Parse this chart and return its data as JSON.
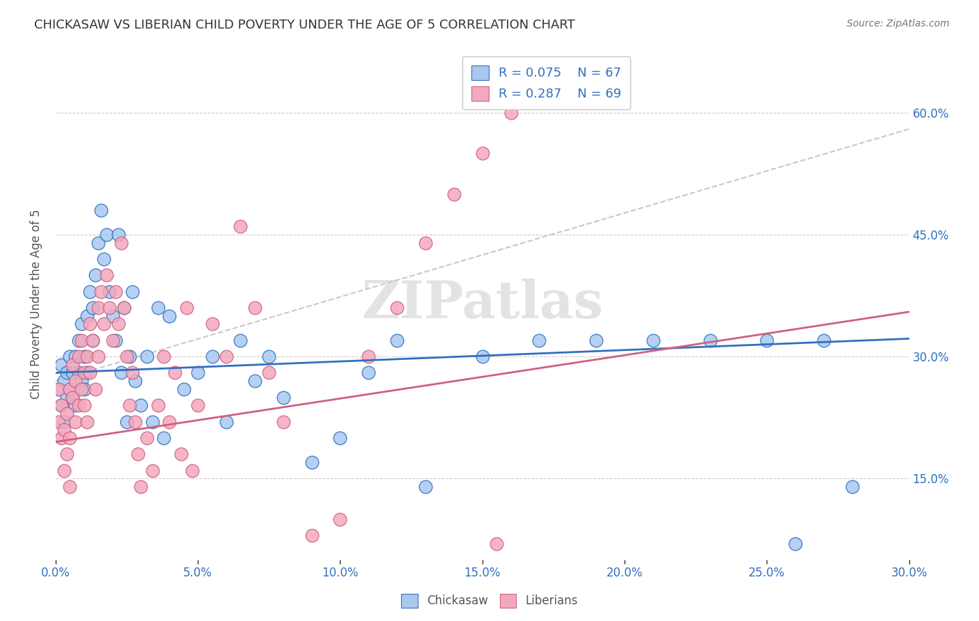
{
  "title": "CHICKASAW VS LIBERIAN CHILD POVERTY UNDER THE AGE OF 5 CORRELATION CHART",
  "source": "Source: ZipAtlas.com",
  "ylabel": "Child Poverty Under the Age of 5",
  "legend_r1": "R = 0.075",
  "legend_n1": "N = 67",
  "legend_r2": "R = 0.287",
  "legend_n2": "N = 69",
  "legend_label1": "Chickasaw",
  "legend_label2": "Liberians",
  "color_blue": "#A8C8F0",
  "color_pink": "#F4A8BC",
  "color_line_blue": "#3070C0",
  "color_line_pink": "#D06080",
  "color_line_dashed": "#C8C8C8",
  "background": "#FFFFFF",
  "watermark": "ZIPatlas",
  "xlim": [
    0.0,
    0.3
  ],
  "ylim": [
    0.05,
    0.68
  ],
  "x_tick_vals": [
    0.0,
    0.05,
    0.1,
    0.15,
    0.2,
    0.25,
    0.3
  ],
  "x_tick_labels": [
    "0.0%",
    "5.0%",
    "10.0%",
    "15.0%",
    "20.0%",
    "25.0%",
    "30.0%"
  ],
  "y_tick_vals": [
    0.15,
    0.3,
    0.45,
    0.6
  ],
  "y_tick_labels": [
    "15.0%",
    "30.0%",
    "45.0%",
    "60.0%"
  ],
  "chickasaw_x": [
    0.001,
    0.002,
    0.002,
    0.003,
    0.003,
    0.004,
    0.004,
    0.005,
    0.005,
    0.006,
    0.006,
    0.007,
    0.007,
    0.008,
    0.008,
    0.009,
    0.009,
    0.01,
    0.01,
    0.011,
    0.011,
    0.012,
    0.013,
    0.013,
    0.014,
    0.015,
    0.016,
    0.017,
    0.018,
    0.019,
    0.02,
    0.021,
    0.022,
    0.023,
    0.024,
    0.025,
    0.026,
    0.027,
    0.028,
    0.03,
    0.032,
    0.034,
    0.036,
    0.038,
    0.04,
    0.045,
    0.05,
    0.055,
    0.06,
    0.065,
    0.07,
    0.075,
    0.08,
    0.09,
    0.1,
    0.11,
    0.12,
    0.13,
    0.15,
    0.17,
    0.19,
    0.21,
    0.23,
    0.25,
    0.26,
    0.27,
    0.28
  ],
  "chickasaw_y": [
    0.26,
    0.24,
    0.29,
    0.27,
    0.22,
    0.25,
    0.28,
    0.26,
    0.3,
    0.25,
    0.28,
    0.3,
    0.24,
    0.28,
    0.32,
    0.27,
    0.34,
    0.3,
    0.26,
    0.35,
    0.28,
    0.38,
    0.32,
    0.36,
    0.4,
    0.44,
    0.48,
    0.42,
    0.45,
    0.38,
    0.35,
    0.32,
    0.45,
    0.28,
    0.36,
    0.22,
    0.3,
    0.38,
    0.27,
    0.24,
    0.3,
    0.22,
    0.36,
    0.2,
    0.35,
    0.26,
    0.28,
    0.3,
    0.22,
    0.32,
    0.27,
    0.3,
    0.25,
    0.17,
    0.2,
    0.28,
    0.32,
    0.14,
    0.3,
    0.32,
    0.32,
    0.32,
    0.32,
    0.32,
    0.07,
    0.32,
    0.14
  ],
  "liberian_x": [
    0.001,
    0.001,
    0.002,
    0.002,
    0.003,
    0.003,
    0.004,
    0.004,
    0.005,
    0.005,
    0.005,
    0.006,
    0.006,
    0.007,
    0.007,
    0.008,
    0.008,
    0.009,
    0.009,
    0.01,
    0.01,
    0.011,
    0.011,
    0.012,
    0.012,
    0.013,
    0.014,
    0.015,
    0.015,
    0.016,
    0.017,
    0.018,
    0.019,
    0.02,
    0.021,
    0.022,
    0.023,
    0.024,
    0.025,
    0.026,
    0.027,
    0.028,
    0.029,
    0.03,
    0.032,
    0.034,
    0.036,
    0.038,
    0.04,
    0.042,
    0.044,
    0.046,
    0.048,
    0.05,
    0.055,
    0.06,
    0.065,
    0.07,
    0.075,
    0.08,
    0.09,
    0.1,
    0.11,
    0.12,
    0.13,
    0.14,
    0.15,
    0.155,
    0.16
  ],
  "liberian_y": [
    0.22,
    0.26,
    0.2,
    0.24,
    0.16,
    0.21,
    0.18,
    0.23,
    0.26,
    0.2,
    0.14,
    0.25,
    0.29,
    0.22,
    0.27,
    0.24,
    0.3,
    0.26,
    0.32,
    0.28,
    0.24,
    0.3,
    0.22,
    0.34,
    0.28,
    0.32,
    0.26,
    0.36,
    0.3,
    0.38,
    0.34,
    0.4,
    0.36,
    0.32,
    0.38,
    0.34,
    0.44,
    0.36,
    0.3,
    0.24,
    0.28,
    0.22,
    0.18,
    0.14,
    0.2,
    0.16,
    0.24,
    0.3,
    0.22,
    0.28,
    0.18,
    0.36,
    0.16,
    0.24,
    0.34,
    0.3,
    0.46,
    0.36,
    0.28,
    0.22,
    0.08,
    0.1,
    0.3,
    0.36,
    0.44,
    0.5,
    0.55,
    0.07,
    0.6
  ]
}
